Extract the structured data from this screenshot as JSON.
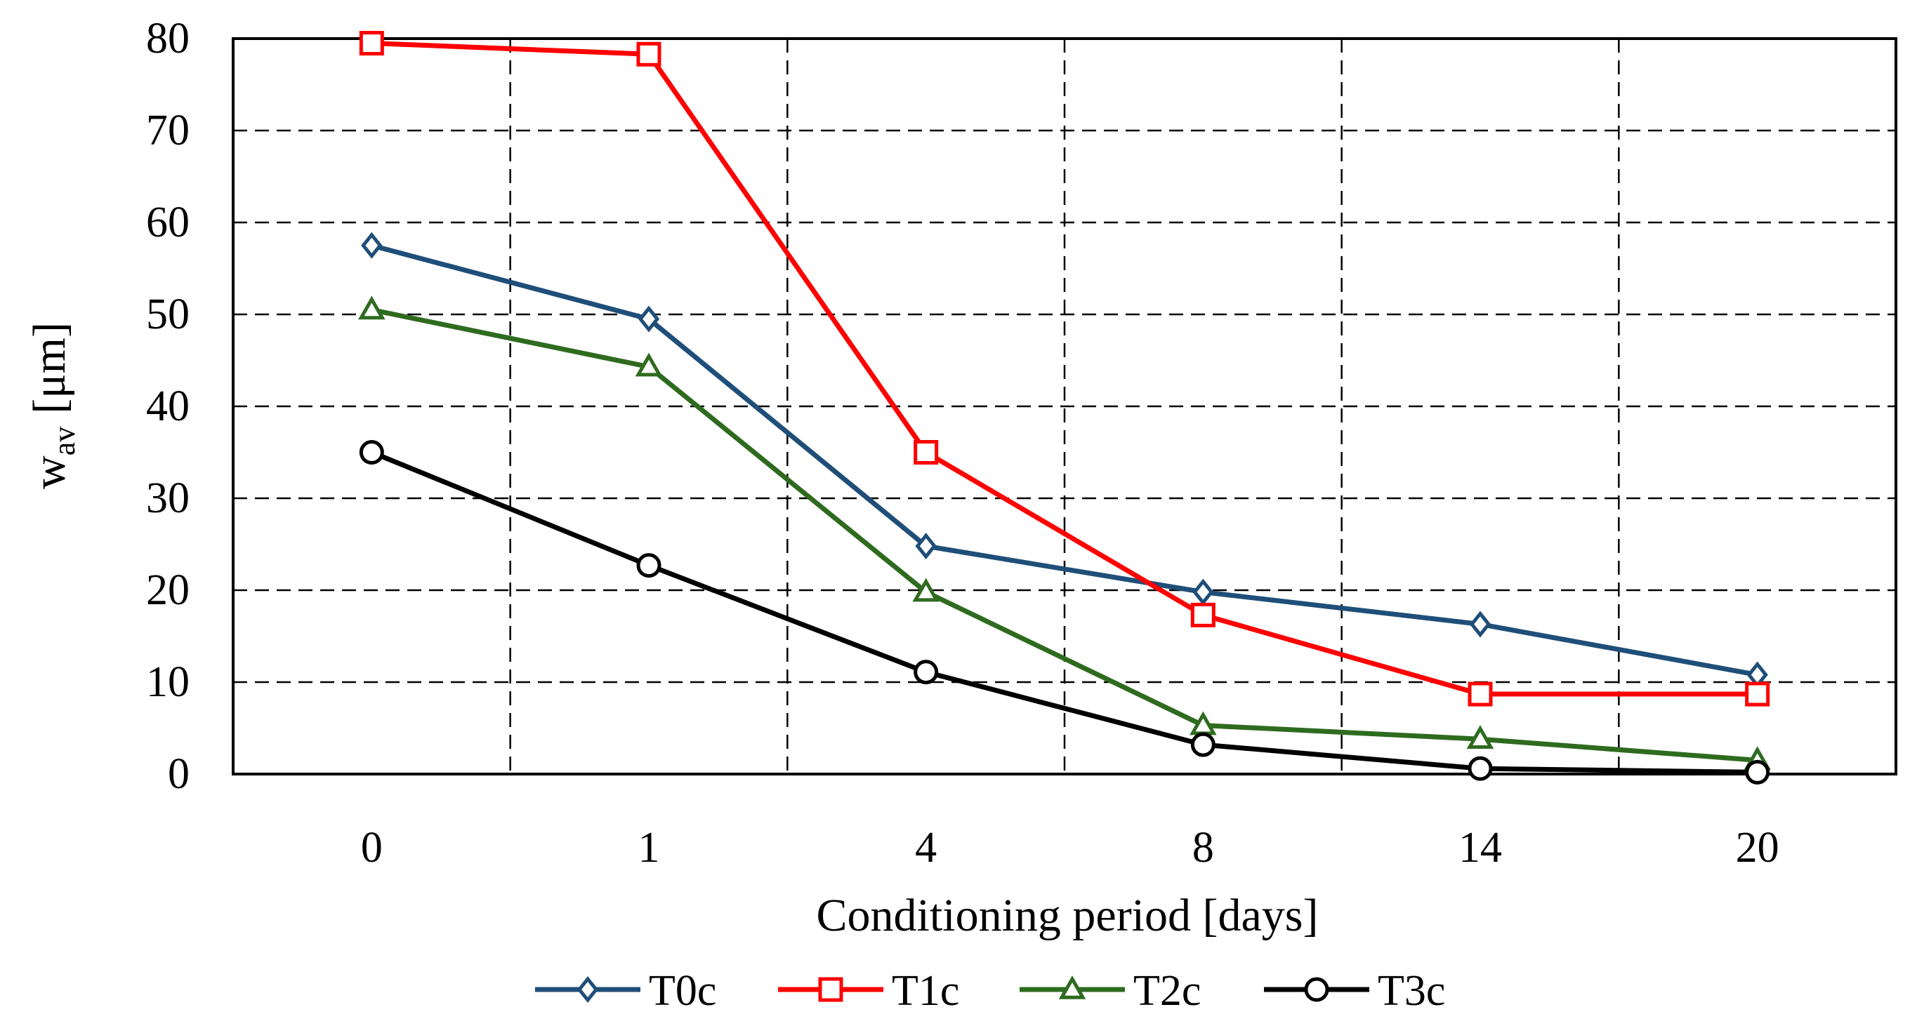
{
  "chart_data": {
    "type": "line",
    "title": "",
    "xlabel": "Conditioning period [days]",
    "ylabel": "w",
    "ylabel_subscript": "av",
    "ylabel_unit": "[μm]",
    "categories": [
      "0",
      "1",
      "4",
      "8",
      "14",
      "20"
    ],
    "ylim": [
      0,
      80
    ],
    "yticks": [
      0,
      10,
      20,
      30,
      40,
      50,
      60,
      70,
      80
    ],
    "grid": true,
    "legend_position": "bottom",
    "series": [
      {
        "name": "T0c",
        "color": "#1f4e79",
        "marker": "diamond",
        "values": [
          57.5,
          49.5,
          24.8,
          19.8,
          16.3,
          10.8
        ]
      },
      {
        "name": "T1c",
        "color": "#ff0000",
        "marker": "square",
        "values": [
          79.5,
          78.3,
          35.0,
          17.3,
          8.7,
          8.7
        ]
      },
      {
        "name": "T2c",
        "color": "#2e6b1f",
        "marker": "triangle",
        "values": [
          50.5,
          44.3,
          19.8,
          5.3,
          3.8,
          1.5
        ]
      },
      {
        "name": "T3c",
        "color": "#000000",
        "marker": "circle",
        "values": [
          35.0,
          22.7,
          11.1,
          3.2,
          0.6,
          0.2
        ]
      }
    ]
  }
}
